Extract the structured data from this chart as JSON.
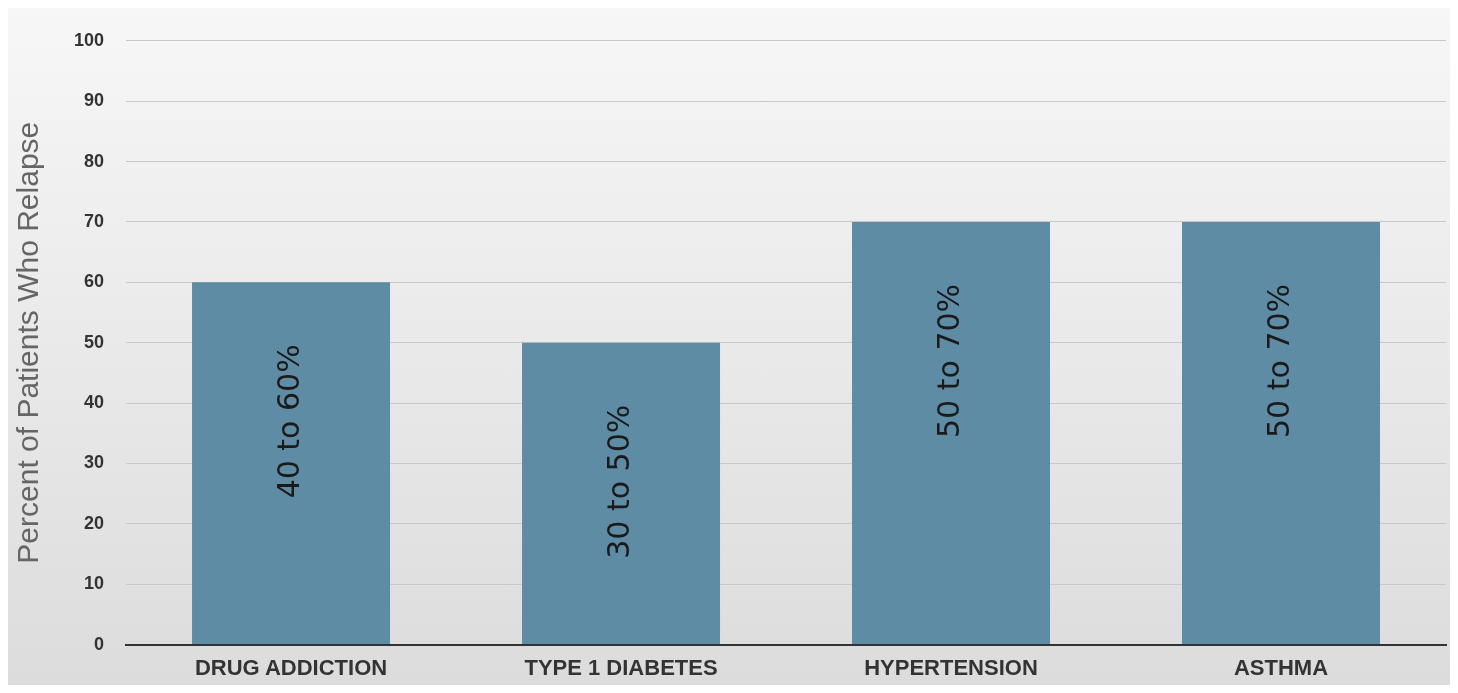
{
  "chart_data": {
    "type": "bar",
    "ylabel": "Percent of Patients Who Relapse",
    "categories": [
      "DRUG ADDICTION",
      "TYPE 1 DIABETES",
      "HYPERTENSION",
      "ASTHMA"
    ],
    "values": [
      60,
      50,
      70,
      70
    ],
    "value_labels": [
      "40 to 60%",
      "30 to 50%",
      "50 to 70%",
      "50 to 70%"
    ],
    "color": "#5f8ca5",
    "ylim": [
      0,
      100
    ],
    "yticks": [
      0,
      10,
      20,
      30,
      40,
      50,
      60,
      70,
      80,
      90,
      100
    ],
    "grid": "y"
  }
}
